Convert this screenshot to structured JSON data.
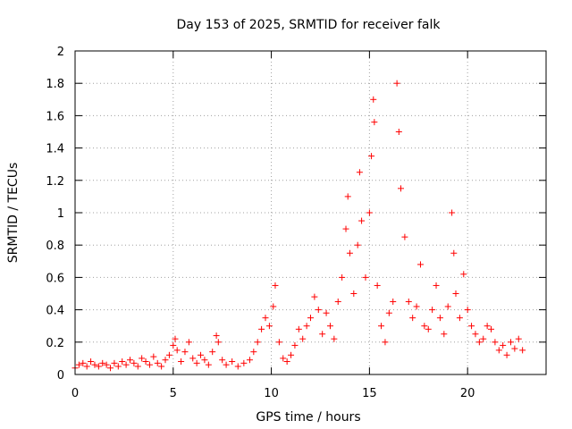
{
  "chart_data": {
    "type": "scatter",
    "title": "Day 153 of 2025, SRMTID for receiver falk",
    "xlabel": "GPS time / hours",
    "ylabel": "SRMTID / TECUs",
    "xlim": [
      0,
      24
    ],
    "ylim": [
      0,
      2
    ],
    "xticks": [
      0,
      5,
      10,
      15,
      20
    ],
    "xtick_labels": [
      "0",
      "5",
      "10",
      "15",
      "20"
    ],
    "yticks": [
      0,
      0.2,
      0.4,
      0.6,
      0.8,
      1,
      1.2,
      1.4,
      1.6,
      1.8,
      2
    ],
    "ytick_labels": [
      "0",
      "0.2",
      "0.4",
      "0.6",
      "0.8",
      "1",
      "1.2",
      "1.4",
      "1.6",
      "1.8",
      "2"
    ],
    "grid": true,
    "marker": "+",
    "marker_color": "#ff0000",
    "series": [
      {
        "name": "SRMTID",
        "points": [
          [
            0.0,
            0.04
          ],
          [
            0.2,
            0.06
          ],
          [
            0.4,
            0.07
          ],
          [
            0.6,
            0.05
          ],
          [
            0.8,
            0.08
          ],
          [
            1.0,
            0.06
          ],
          [
            1.2,
            0.05
          ],
          [
            1.4,
            0.07
          ],
          [
            1.6,
            0.06
          ],
          [
            1.8,
            0.04
          ],
          [
            2.0,
            0.07
          ],
          [
            2.2,
            0.05
          ],
          [
            2.4,
            0.08
          ],
          [
            2.6,
            0.06
          ],
          [
            2.8,
            0.09
          ],
          [
            3.0,
            0.07
          ],
          [
            3.2,
            0.05
          ],
          [
            3.4,
            0.1
          ],
          [
            3.6,
            0.08
          ],
          [
            3.8,
            0.06
          ],
          [
            4.0,
            0.11
          ],
          [
            4.2,
            0.07
          ],
          [
            4.4,
            0.05
          ],
          [
            4.6,
            0.09
          ],
          [
            4.8,
            0.12
          ],
          [
            5.0,
            0.18
          ],
          [
            5.1,
            0.22
          ],
          [
            5.2,
            0.15
          ],
          [
            5.4,
            0.08
          ],
          [
            5.6,
            0.14
          ],
          [
            5.8,
            0.2
          ],
          [
            6.0,
            0.1
          ],
          [
            6.2,
            0.07
          ],
          [
            6.4,
            0.12
          ],
          [
            6.6,
            0.09
          ],
          [
            6.8,
            0.06
          ],
          [
            7.0,
            0.14
          ],
          [
            7.2,
            0.24
          ],
          [
            7.3,
            0.2
          ],
          [
            7.5,
            0.09
          ],
          [
            7.7,
            0.06
          ],
          [
            8.0,
            0.08
          ],
          [
            8.3,
            0.05
          ],
          [
            8.6,
            0.07
          ],
          [
            8.9,
            0.09
          ],
          [
            9.1,
            0.14
          ],
          [
            9.3,
            0.2
          ],
          [
            9.5,
            0.28
          ],
          [
            9.7,
            0.35
          ],
          [
            9.9,
            0.3
          ],
          [
            10.1,
            0.42
          ],
          [
            10.2,
            0.55
          ],
          [
            10.4,
            0.2
          ],
          [
            10.6,
            0.1
          ],
          [
            10.8,
            0.08
          ],
          [
            11.0,
            0.12
          ],
          [
            11.2,
            0.18
          ],
          [
            11.4,
            0.28
          ],
          [
            11.6,
            0.22
          ],
          [
            11.8,
            0.3
          ],
          [
            12.0,
            0.35
          ],
          [
            12.2,
            0.48
          ],
          [
            12.4,
            0.4
          ],
          [
            12.6,
            0.25
          ],
          [
            12.8,
            0.38
          ],
          [
            13.0,
            0.3
          ],
          [
            13.2,
            0.22
          ],
          [
            13.4,
            0.45
          ],
          [
            13.6,
            0.6
          ],
          [
            13.8,
            0.9
          ],
          [
            13.9,
            1.1
          ],
          [
            14.0,
            0.75
          ],
          [
            14.2,
            0.5
          ],
          [
            14.4,
            0.8
          ],
          [
            14.5,
            1.25
          ],
          [
            14.6,
            0.95
          ],
          [
            14.8,
            0.6
          ],
          [
            15.0,
            1.0
          ],
          [
            15.1,
            1.35
          ],
          [
            15.2,
            1.7
          ],
          [
            15.25,
            1.56
          ],
          [
            15.4,
            0.55
          ],
          [
            15.6,
            0.3
          ],
          [
            15.8,
            0.2
          ],
          [
            16.0,
            0.38
          ],
          [
            16.2,
            0.45
          ],
          [
            16.4,
            1.8
          ],
          [
            16.5,
            1.5
          ],
          [
            16.6,
            1.15
          ],
          [
            16.8,
            0.85
          ],
          [
            17.0,
            0.45
          ],
          [
            17.2,
            0.35
          ],
          [
            17.4,
            0.42
          ],
          [
            17.6,
            0.68
          ],
          [
            17.8,
            0.3
          ],
          [
            18.0,
            0.28
          ],
          [
            18.2,
            0.4
          ],
          [
            18.4,
            0.55
          ],
          [
            18.6,
            0.35
          ],
          [
            18.8,
            0.25
          ],
          [
            19.0,
            0.42
          ],
          [
            19.2,
            1.0
          ],
          [
            19.3,
            0.75
          ],
          [
            19.4,
            0.5
          ],
          [
            19.6,
            0.35
          ],
          [
            19.8,
            0.62
          ],
          [
            20.0,
            0.4
          ],
          [
            20.2,
            0.3
          ],
          [
            20.4,
            0.25
          ],
          [
            20.6,
            0.2
          ],
          [
            20.8,
            0.22
          ],
          [
            21.0,
            0.3
          ],
          [
            21.2,
            0.28
          ],
          [
            21.4,
            0.2
          ],
          [
            21.6,
            0.15
          ],
          [
            21.8,
            0.18
          ],
          [
            22.0,
            0.12
          ],
          [
            22.2,
            0.2
          ],
          [
            22.4,
            0.16
          ],
          [
            22.6,
            0.22
          ],
          [
            22.8,
            0.15
          ]
        ]
      }
    ]
  }
}
